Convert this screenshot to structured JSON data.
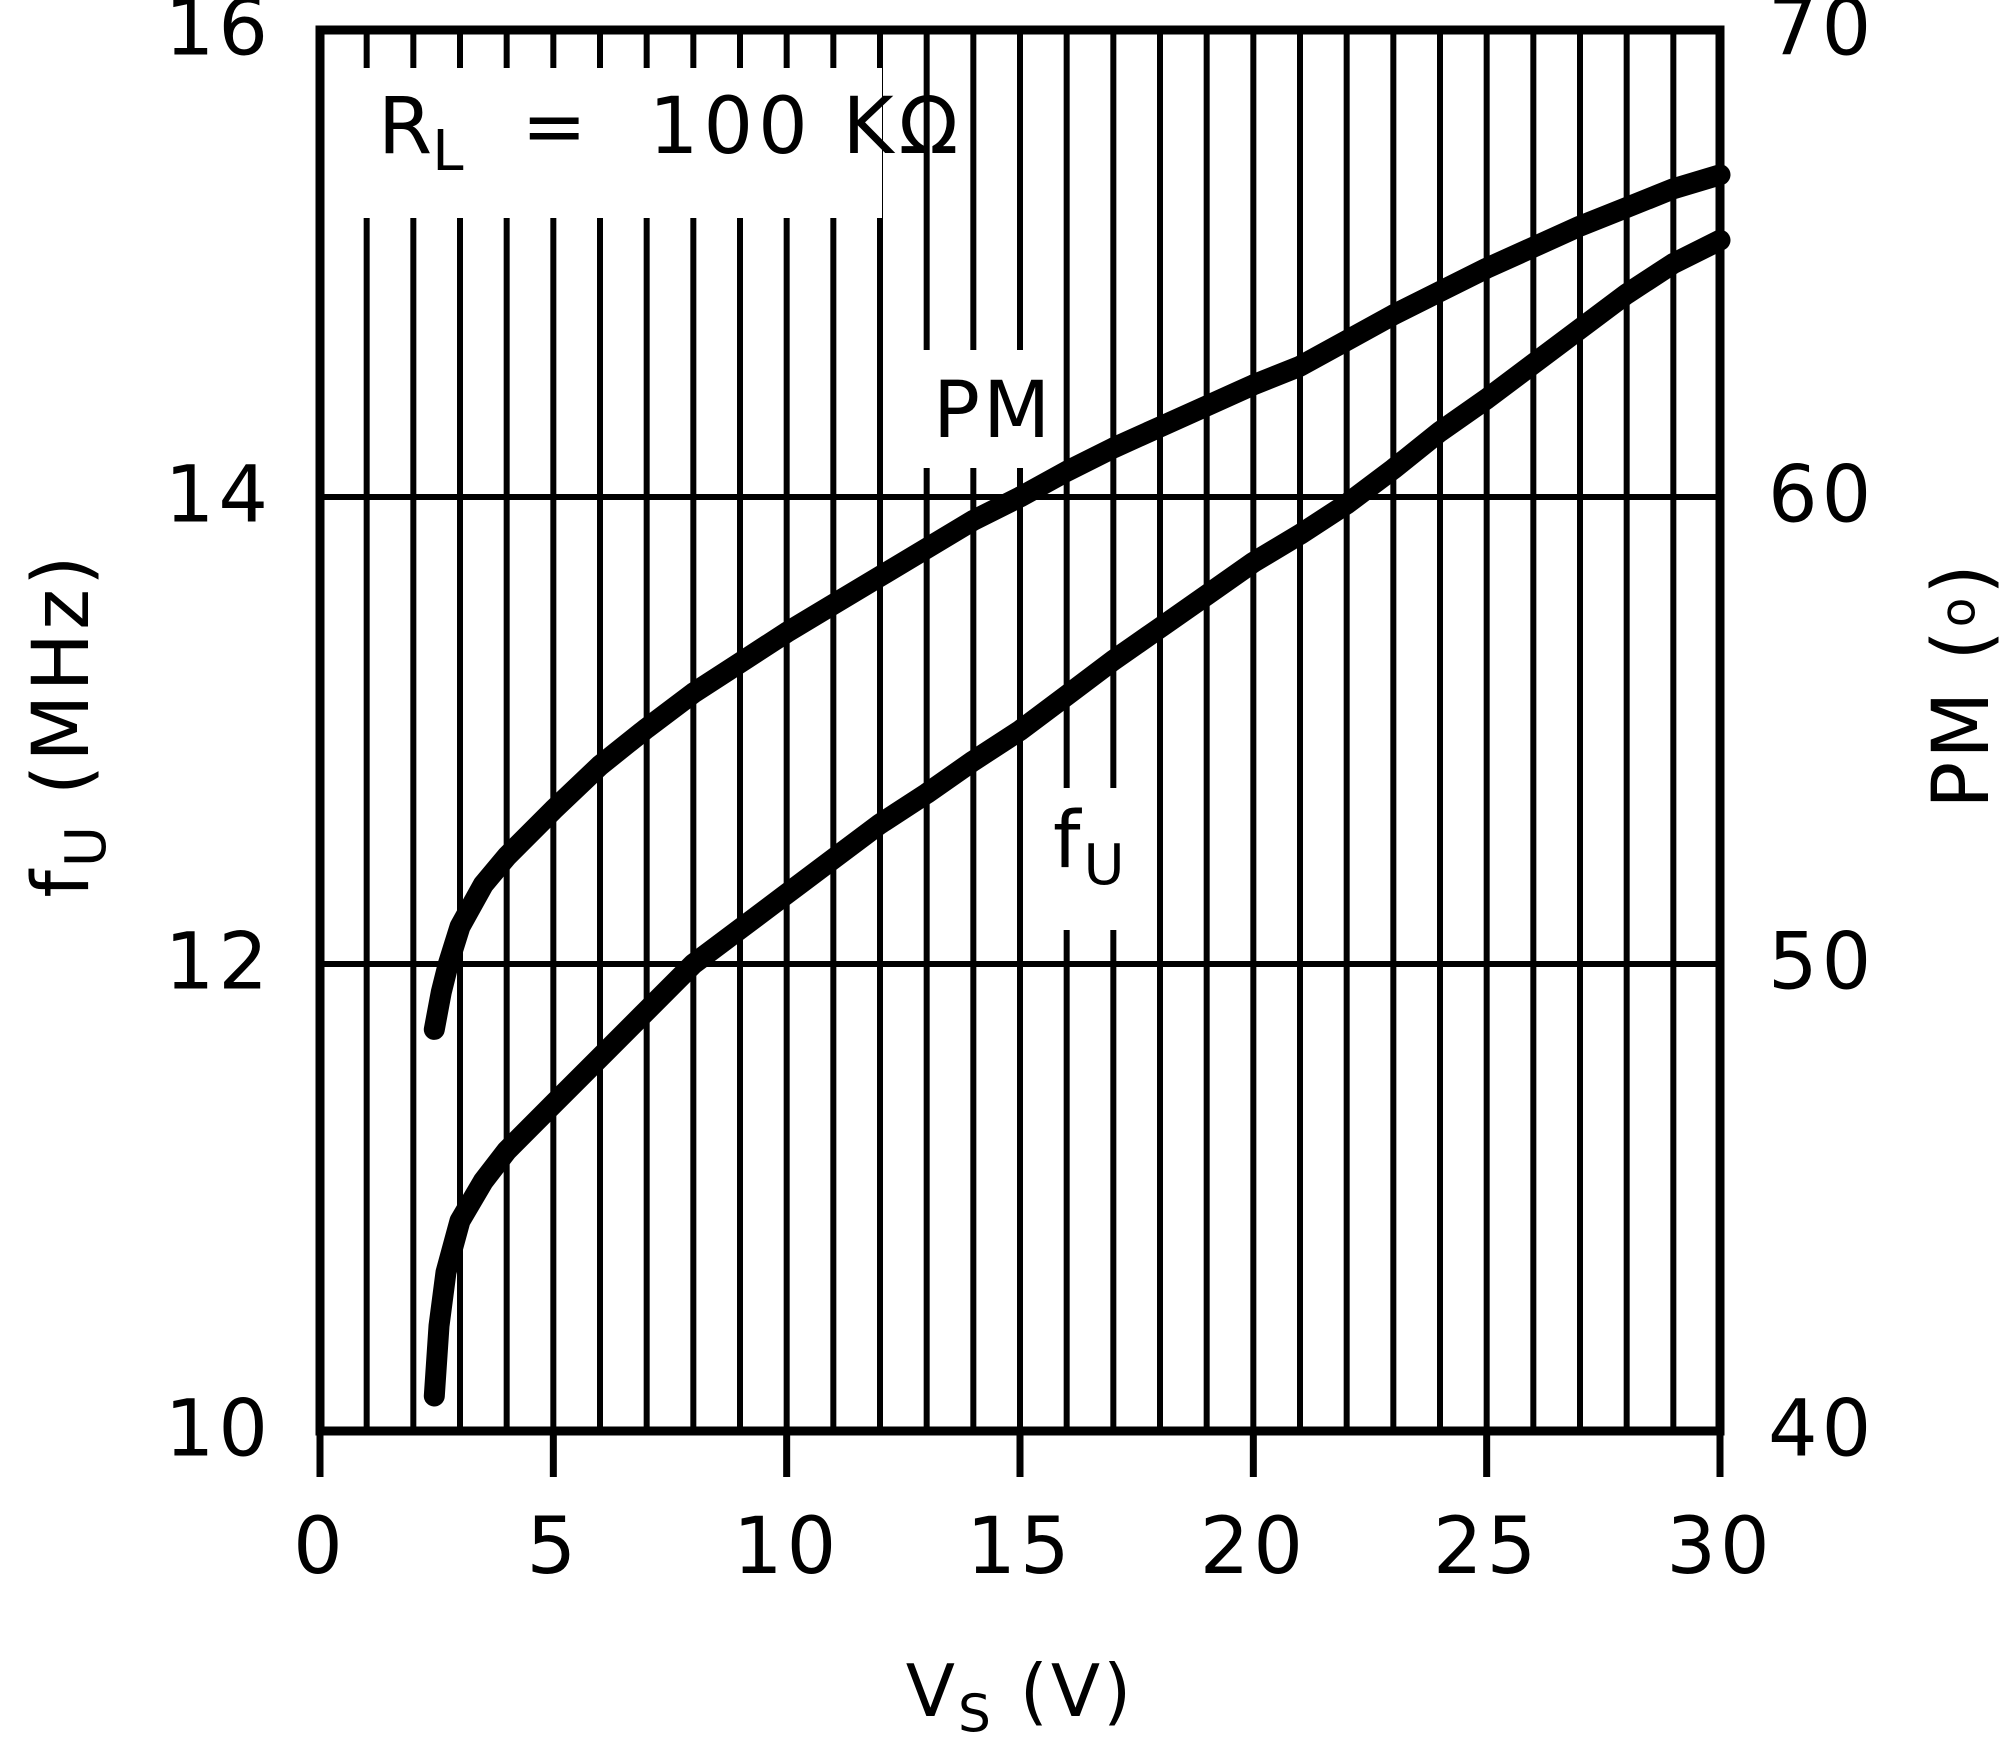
{
  "figure": {
    "background": "#ffffff",
    "ink": "#000000"
  },
  "legend": {
    "r": "R",
    "r_sub": "L",
    "eq": "=",
    "value": "100 KΩ"
  },
  "curve_labels": {
    "pm": "PM",
    "fu_main": "f",
    "fu_sub": "U"
  },
  "axes": {
    "left": {
      "title_main": "f",
      "title_sub": "U",
      "title_unit": " (MHz)",
      "ticks": [
        "16",
        "14",
        "12",
        "10"
      ]
    },
    "right": {
      "title_main": "PM (",
      "title_deg": "o",
      "title_close": ")",
      "ticks": [
        "70",
        "60",
        "50",
        "40"
      ]
    },
    "bottom": {
      "title_main": "V",
      "title_sub": "S",
      "title_unit": " (V)",
      "ticks": [
        "0",
        "5",
        "10",
        "15",
        "20",
        "25",
        "30"
      ]
    }
  },
  "chart_data": {
    "type": "line",
    "title": "",
    "annotation": "R_L = 100 KΩ",
    "xlabel": "V_S (V)",
    "ylabel_left": "f_U (MHz)",
    "ylabel_right": "PM (°)",
    "x_range": [
      0,
      30
    ],
    "x_major_ticks": [
      0,
      5,
      10,
      15,
      20,
      25,
      30
    ],
    "x_gridline_step": 1,
    "y_left_range": [
      10,
      16
    ],
    "y_left_ticks": [
      10,
      12,
      14,
      16
    ],
    "y_right_range": [
      40,
      70
    ],
    "y_right_ticks": [
      40,
      50,
      60,
      70
    ],
    "grid": "vertical gridlines every 1 V; horizontal gridlines at interior major ticks",
    "legend_position": "top-left inside plot",
    "series": [
      {
        "name": "PM",
        "axis": "right",
        "unit": "degrees",
        "color": "#000000",
        "points": [
          [
            2.45,
            48.6
          ],
          [
            2.6,
            49.4
          ],
          [
            2.75,
            50.0
          ],
          [
            3,
            50.8
          ],
          [
            3.5,
            51.7
          ],
          [
            4,
            52.3
          ],
          [
            5,
            53.3
          ],
          [
            6,
            54.25
          ],
          [
            7,
            55.05
          ],
          [
            8,
            55.8
          ],
          [
            9,
            56.45
          ],
          [
            10,
            57.1
          ],
          [
            11,
            57.7
          ],
          [
            12,
            58.3
          ],
          [
            13,
            58.9
          ],
          [
            14,
            59.5
          ],
          [
            15,
            60.0
          ],
          [
            16,
            60.55
          ],
          [
            17,
            61.05
          ],
          [
            18,
            61.5
          ],
          [
            19,
            61.95
          ],
          [
            20,
            62.4
          ],
          [
            21,
            62.8
          ],
          [
            22,
            63.35
          ],
          [
            23,
            63.9
          ],
          [
            24,
            64.4
          ],
          [
            25,
            64.9
          ],
          [
            26,
            65.35
          ],
          [
            27,
            65.8
          ],
          [
            28,
            66.2
          ],
          [
            29,
            66.6
          ],
          [
            30,
            66.9
          ]
        ]
      },
      {
        "name": "f_U",
        "axis": "left",
        "unit": "MHz",
        "color": "#000000",
        "points": [
          [
            2.45,
            10.15
          ],
          [
            2.55,
            10.45
          ],
          [
            2.7,
            10.68
          ],
          [
            3,
            10.9
          ],
          [
            3.5,
            11.07
          ],
          [
            4,
            11.2
          ],
          [
            5,
            11.4
          ],
          [
            6,
            11.6
          ],
          [
            7,
            11.8
          ],
          [
            8,
            12.0
          ],
          [
            9,
            12.15
          ],
          [
            10,
            12.3
          ],
          [
            11,
            12.45
          ],
          [
            12,
            12.6
          ],
          [
            13,
            12.73
          ],
          [
            14,
            12.87
          ],
          [
            15,
            13.0
          ],
          [
            16,
            13.15
          ],
          [
            17,
            13.3
          ],
          [
            18,
            13.44
          ],
          [
            19,
            13.58
          ],
          [
            20,
            13.72
          ],
          [
            21,
            13.84
          ],
          [
            22,
            13.97
          ],
          [
            23,
            14.12
          ],
          [
            24,
            14.28
          ],
          [
            25,
            14.42
          ],
          [
            26,
            14.57
          ],
          [
            27,
            14.72
          ],
          [
            28,
            14.87
          ],
          [
            29,
            15.0
          ],
          [
            30,
            15.1
          ]
        ]
      }
    ]
  }
}
